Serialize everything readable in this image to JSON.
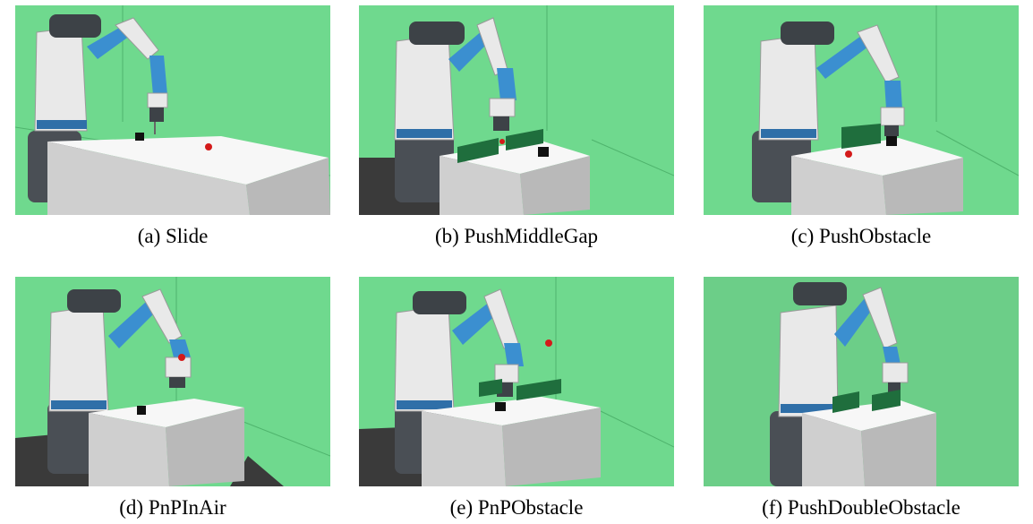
{
  "figure": {
    "panels": [
      {
        "id": "a",
        "caption": "(a) Slide",
        "scene": "slide"
      },
      {
        "id": "b",
        "caption": "(b) PushMiddleGap",
        "scene": "push-middle-gap"
      },
      {
        "id": "c",
        "caption": "(c) PushObstacle",
        "scene": "push-obstacle"
      },
      {
        "id": "d",
        "caption": "(d) PnPInAir",
        "scene": "pnp-in-air"
      },
      {
        "id": "e",
        "caption": "(e) PnPObstacle",
        "scene": "pnp-obstacle"
      },
      {
        "id": "f",
        "caption": "(f) PushDoubleObstacle",
        "scene": "push-double-obstacle"
      }
    ]
  },
  "colors": {
    "background_green": "#6fd98e",
    "table_top": "#f7f7f7",
    "table_side": "#cfcfcf",
    "floor_shadow": "#3a3a3a",
    "robot_white": "#e9e9e9",
    "robot_blue": "#3b8fd0",
    "robot_dark": "#3d4247",
    "obstacle_green": "#1f6e3d",
    "goal_red": "#d41a1a",
    "block_black": "#111111"
  }
}
